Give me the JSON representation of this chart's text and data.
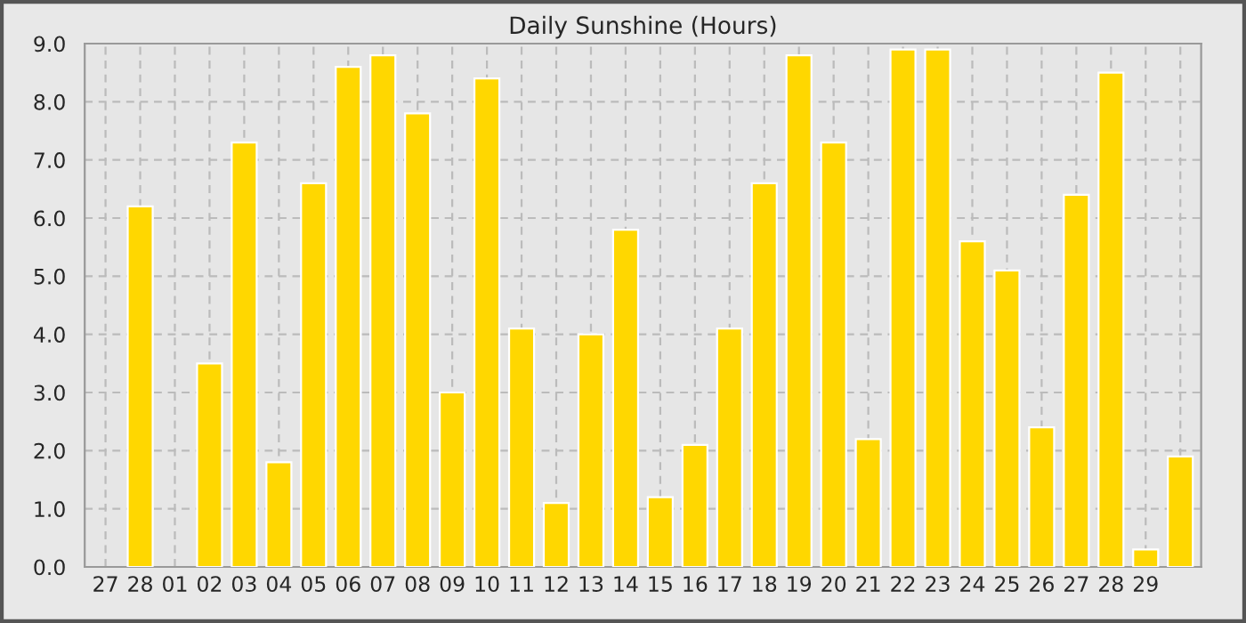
{
  "chart_data": {
    "type": "bar",
    "title": "Daily Sunshine (Hours)",
    "categories": [
      "27",
      "28",
      "01",
      "02",
      "03",
      "04",
      "05",
      "06",
      "07",
      "08",
      "09",
      "10",
      "11",
      "12",
      "13",
      "14",
      "15",
      "16",
      "17",
      "18",
      "19",
      "20",
      "21",
      "22",
      "23",
      "24",
      "25",
      "26",
      "27",
      "28",
      "29",
      null
    ],
    "values": [
      null,
      6.2,
      null,
      3.5,
      7.3,
      1.8,
      6.6,
      8.6,
      8.8,
      7.8,
      3.0,
      8.4,
      4.1,
      1.1,
      4.0,
      5.8,
      1.2,
      2.1,
      4.1,
      6.6,
      8.8,
      7.3,
      2.2,
      8.9,
      8.9,
      5.6,
      5.1,
      2.4,
      6.4,
      8.5,
      0.3,
      1.9
    ],
    "color": "#ffd700",
    "ylim": [
      0,
      9
    ],
    "yticks": [
      {
        "value": 0,
        "label": "0.0"
      },
      {
        "value": 1,
        "label": "1.0"
      },
      {
        "value": 2,
        "label": "2.0"
      },
      {
        "value": 3,
        "label": "3.0"
      },
      {
        "value": 4,
        "label": "4.0"
      },
      {
        "value": 5,
        "label": "5.0"
      },
      {
        "value": 6,
        "label": "6.0"
      },
      {
        "value": 7,
        "label": "7.0"
      },
      {
        "value": 8,
        "label": "8.0"
      },
      {
        "value": 9,
        "label": "9.0"
      }
    ],
    "grid": true
  }
}
